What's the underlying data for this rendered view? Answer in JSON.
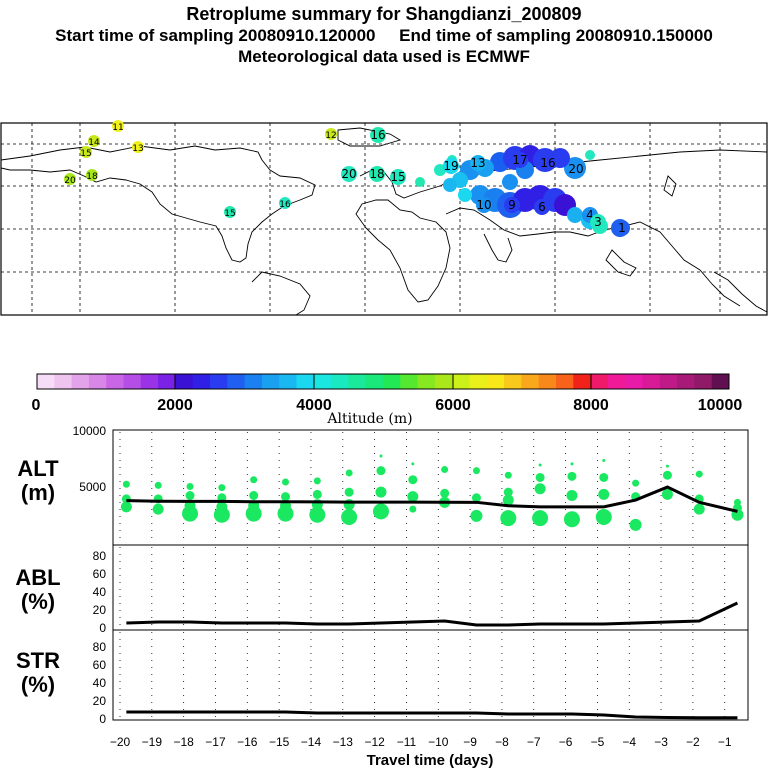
{
  "header": {
    "title": "Retroplume summary for Shangdianzi_200809",
    "sampling": "Start time of sampling 20080910.120000     End time of sampling 20080910.150000",
    "meteo": "Meteorological data used is ECMWF"
  },
  "colorbar": {
    "ticks": [
      "0",
      "2000",
      "4000",
      "6000",
      "8000",
      "10000"
    ],
    "label": "Altitude (m)",
    "colors": [
      "#f7dcf7",
      "#efc4ef",
      "#e3a3ea",
      "#d987e6",
      "#c966e6",
      "#b44ee6",
      "#9a33e6",
      "#7a22e6",
      "#3a12d6",
      "#3020e6",
      "#2a3cf0",
      "#2060f0",
      "#1b80f0",
      "#1aa0f0",
      "#1ab8f0",
      "#1ad8f0",
      "#1ae8e0",
      "#1ae8c0",
      "#1ae89a",
      "#1ae87a",
      "#22e855",
      "#55e830",
      "#88e820",
      "#aae81a",
      "#ccf01a",
      "#eaf01a",
      "#f8e81a",
      "#f8c81a",
      "#f8a81a",
      "#f8881a",
      "#f8621a",
      "#f0221a",
      "#f01a6a",
      "#f01a98",
      "#e81aa8",
      "#d81a98",
      "#c01a88",
      "#a81a78",
      "#901a68",
      "#601050"
    ]
  },
  "map": {
    "labels": [
      {
        "t": "14",
        "c": "#c8e81a"
      },
      {
        "t": "11",
        "c": "#f0f01a"
      },
      {
        "t": "15",
        "c": "#c8e81a"
      },
      {
        "t": "13",
        "c": "#f0f01a"
      },
      {
        "t": "20",
        "c": "#a8e81a"
      },
      {
        "t": "18",
        "c": "#a8e81a"
      },
      {
        "t": "12",
        "c": "#c8e81a"
      },
      {
        "t": "16",
        "c": "#22e8b0"
      },
      {
        "t": "20",
        "c": "#22e8c0"
      },
      {
        "t": "18",
        "c": "#22e8b0"
      },
      {
        "t": "15",
        "c": "#22e8c0"
      },
      {
        "t": "15",
        "c": "#22e8b0"
      },
      {
        "t": "16",
        "c": "#22e8c0"
      },
      {
        "t": "19",
        "c": "#1ad8f0"
      },
      {
        "t": "13",
        "c": "#1ab0f0"
      },
      {
        "t": "10",
        "c": "#1a90f0"
      },
      {
        "t": "9",
        "c": "#2a3cf0"
      },
      {
        "t": "6",
        "c": "#2a3cf0"
      },
      {
        "t": "20",
        "c": "#1a90f0"
      },
      {
        "t": "1",
        "c": "#2060f0"
      },
      {
        "t": "4",
        "c": "#1a90f0"
      },
      {
        "t": "16",
        "c": "#2a3cf0"
      },
      {
        "t": "17",
        "c": "#2a3cf0"
      },
      {
        "t": "3",
        "c": "#22e8c0"
      }
    ]
  },
  "panels": {
    "alt": {
      "name": "ALT",
      "unit": "(m)",
      "yticks": [
        "10000",
        "5000"
      ]
    },
    "abl": {
      "name": "ABL",
      "unit": "(%)",
      "yticks": [
        "80",
        "60",
        "40",
        "20",
        "0"
      ]
    },
    "str": {
      "name": "STR",
      "unit": "(%)",
      "yticks": [
        "80",
        "60",
        "40",
        "20",
        "0"
      ]
    }
  },
  "xaxis": {
    "label": "Travel time (days)",
    "ticks": [
      "−20",
      "−19",
      "−18",
      "−17",
      "−16",
      "−15",
      "−14",
      "−13",
      "−12",
      "−11",
      "−10",
      "−9",
      "−8",
      "−7",
      "−6",
      "−5",
      "−4",
      "−3",
      "−2",
      "−1"
    ]
  },
  "chart_data": [
    {
      "type": "line",
      "title": "ALT",
      "ylabel": "(m)",
      "xlabel": "Travel time (days)",
      "x": [
        -19.8,
        -18.8,
        -17.8,
        -16.8,
        -15.8,
        -14.8,
        -13.8,
        -12.8,
        -11.8,
        -10.8,
        -9.8,
        -8.8,
        -7.8,
        -6.8,
        -5.8,
        -4.8,
        -3.8,
        -2.8,
        -1.8,
        -0.6
      ],
      "y": [
        3750,
        3700,
        3680,
        3680,
        3650,
        3650,
        3640,
        3620,
        3620,
        3620,
        3610,
        3600,
        3300,
        3200,
        3200,
        3200,
        3800,
        4950,
        3600,
        2800
      ],
      "ylim": [
        0,
        10000
      ],
      "xlim": [
        -20,
        -0.3
      ],
      "green_cluster_altitudes": [
        [
          5200,
          3900,
          3200
        ],
        [
          5100,
          3900,
          3000
        ],
        [
          5000,
          4200,
          3300,
          2600
        ],
        [
          4900,
          4000,
          3200,
          2500
        ],
        [
          5600,
          4200,
          3300,
          2600
        ],
        [
          5400,
          4100,
          3300,
          2600
        ],
        [
          5500,
          4300,
          3400,
          2500
        ],
        [
          6200,
          4500,
          3400,
          2300
        ],
        [
          7700,
          6400,
          4500,
          2800
        ],
        [
          7000,
          5600,
          4100,
          3000
        ],
        [
          6500,
          4400,
          3600
        ],
        [
          6400,
          4000,
          2400
        ],
        [
          6000,
          4500,
          3800,
          2200
        ],
        [
          6900,
          5800,
          4800,
          2200
        ],
        [
          7000,
          5900,
          4200,
          2100
        ],
        [
          7300,
          5800,
          4300,
          2300
        ],
        [
          5300,
          4100,
          1600
        ],
        [
          6800,
          6000,
          4300
        ],
        [
          6100,
          3900,
          3000
        ],
        [
          3600,
          3100,
          2500
        ]
      ],
      "series_color": "#1ae860"
    },
    {
      "type": "line",
      "title": "ABL",
      "ylabel": "(%)",
      "x": [
        -19.8,
        -18.8,
        -17.8,
        -16.8,
        -15.8,
        -14.8,
        -13.8,
        -12.8,
        -11.8,
        -10.8,
        -9.8,
        -8.8,
        -7.8,
        -6.8,
        -5.8,
        -4.8,
        -3.8,
        -2.8,
        -1.8,
        -0.6
      ],
      "y": [
        5,
        6,
        6,
        5,
        5,
        5,
        4,
        4,
        5,
        6,
        7,
        3,
        3,
        4,
        4,
        4,
        5,
        6,
        7,
        25
      ],
      "ylim": [
        0,
        95
      ]
    },
    {
      "type": "line",
      "title": "STR",
      "ylabel": "(%)",
      "x": [
        -19.8,
        -18.8,
        -17.8,
        -16.8,
        -15.8,
        -14.8,
        -13.8,
        -12.8,
        -11.8,
        -10.8,
        -9.8,
        -8.8,
        -7.8,
        -6.8,
        -5.8,
        -4.8,
        -3.8,
        -2.8,
        -1.8,
        -0.6
      ],
      "y": [
        6,
        6,
        6,
        6,
        6,
        6,
        5,
        5,
        5,
        5,
        5,
        5,
        4,
        4,
        4,
        3,
        1,
        0.5,
        0.3,
        0.2
      ],
      "ylim": [
        0,
        95
      ]
    }
  ]
}
